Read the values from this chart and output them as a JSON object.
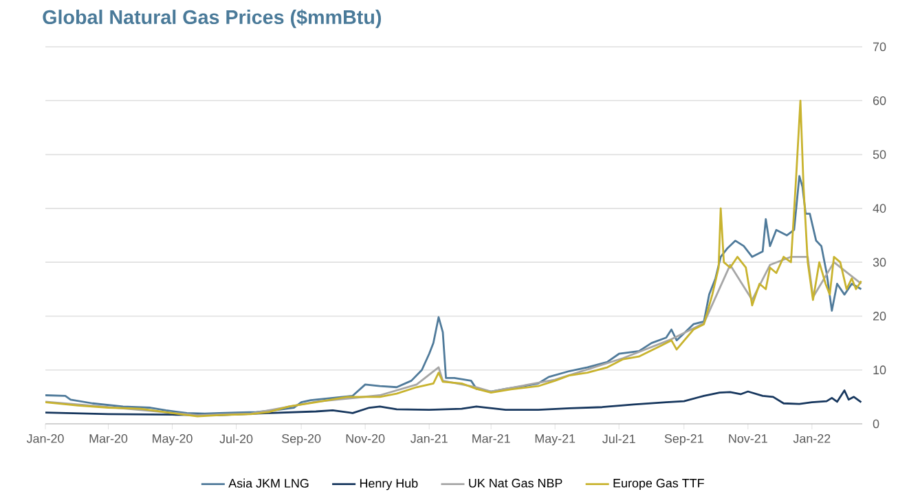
{
  "chart_data": {
    "type": "line",
    "title": "Global Natural Gas Prices ($mmBtu)",
    "xlim": [
      "2020-01-01",
      "2022-02-18"
    ],
    "xticks": [
      {
        "value": "2020-01-01",
        "label": "Jan-20"
      },
      {
        "value": "2020-03-01",
        "label": "Mar-20"
      },
      {
        "value": "2020-05-01",
        "label": "May-20"
      },
      {
        "value": "2020-07-01",
        "label": "Jul-20"
      },
      {
        "value": "2020-09-01",
        "label": "Sep-20"
      },
      {
        "value": "2020-11-01",
        "label": "Nov-20"
      },
      {
        "value": "2021-01-01",
        "label": "Jan-21"
      },
      {
        "value": "2021-03-01",
        "label": "Mar-21"
      },
      {
        "value": "2021-05-01",
        "label": "May-21"
      },
      {
        "value": "2021-07-01",
        "label": "Jul-21"
      },
      {
        "value": "2021-09-01",
        "label": "Sep-21"
      },
      {
        "value": "2021-11-01",
        "label": "Nov-21"
      },
      {
        "value": "2022-01-01",
        "label": "Jan-22"
      }
    ],
    "ylim": [
      0,
      70
    ],
    "yticks": [
      0,
      10,
      20,
      30,
      40,
      50,
      60,
      70
    ],
    "grid": "y",
    "legend": "bottom",
    "marker": "none",
    "line_style": "solid",
    "series": [
      {
        "name": "Asia JKM LNG",
        "color": "#4f7a9a",
        "x": [
          "2020-01-01",
          "2020-01-20",
          "2020-01-25",
          "2020-02-15",
          "2020-03-15",
          "2020-04-10",
          "2020-04-25",
          "2020-05-15",
          "2020-06-01",
          "2020-06-15",
          "2020-07-01",
          "2020-07-20",
          "2020-08-10",
          "2020-08-25",
          "2020-09-01",
          "2020-09-10",
          "2020-10-01",
          "2020-10-20",
          "2020-11-01",
          "2020-11-15",
          "2020-12-01",
          "2020-12-15",
          "2020-12-25",
          "2021-01-01",
          "2021-01-05",
          "2021-01-10",
          "2021-01-14",
          "2021-01-17",
          "2021-01-25",
          "2021-02-10",
          "2021-02-15",
          "2021-03-01",
          "2021-03-15",
          "2021-04-01",
          "2021-04-15",
          "2021-04-25",
          "2021-05-15",
          "2021-06-01",
          "2021-06-20",
          "2021-07-01",
          "2021-07-20",
          "2021-08-01",
          "2021-08-15",
          "2021-08-20",
          "2021-08-25",
          "2021-09-10",
          "2021-09-20",
          "2021-09-25",
          "2021-10-01",
          "2021-10-06",
          "2021-10-12",
          "2021-10-20",
          "2021-10-28",
          "2021-11-05",
          "2021-11-15",
          "2021-11-18",
          "2021-11-22",
          "2021-11-28",
          "2021-12-08",
          "2021-12-15",
          "2021-12-20",
          "2021-12-23",
          "2021-12-26",
          "2021-12-30",
          "2022-01-05",
          "2022-01-10",
          "2022-01-15",
          "2022-01-20",
          "2022-01-25",
          "2022-02-01",
          "2022-02-08",
          "2022-02-17"
        ],
        "values": [
          5.3,
          5.2,
          4.5,
          3.8,
          3.2,
          3.0,
          2.5,
          2.0,
          1.9,
          2.0,
          2.1,
          2.2,
          2.6,
          3.0,
          4.0,
          4.4,
          4.8,
          5.2,
          7.3,
          7.0,
          6.8,
          8.0,
          10.0,
          13,
          15,
          19.8,
          17,
          8.5,
          8.5,
          8.0,
          6.5,
          6.0,
          6.5,
          7.0,
          7.5,
          8.7,
          9.8,
          10.5,
          11.5,
          13,
          13.5,
          15,
          16,
          17.5,
          15.5,
          18.5,
          19,
          24,
          27,
          31,
          32.5,
          34,
          33,
          31,
          32,
          38,
          33,
          36,
          35,
          36,
          46,
          44,
          39,
          39,
          34,
          33,
          28,
          21,
          26,
          24,
          26,
          25
        ]
      },
      {
        "name": "Henry Hub",
        "color": "#17375e",
        "x": [
          "2020-01-01",
          "2020-03-01",
          "2020-05-01",
          "2020-06-15",
          "2020-08-01",
          "2020-09-15",
          "2020-10-01",
          "2020-10-20",
          "2020-11-05",
          "2020-11-15",
          "2020-12-01",
          "2021-01-01",
          "2021-02-01",
          "2021-02-15",
          "2021-03-15",
          "2021-04-15",
          "2021-05-15",
          "2021-06-15",
          "2021-07-15",
          "2021-08-15",
          "2021-09-01",
          "2021-09-20",
          "2021-10-05",
          "2021-10-15",
          "2021-10-25",
          "2021-11-01",
          "2021-11-15",
          "2021-11-25",
          "2021-12-05",
          "2021-12-20",
          "2022-01-01",
          "2022-01-15",
          "2022-01-20",
          "2022-01-25",
          "2022-02-01",
          "2022-02-05",
          "2022-02-10",
          "2022-02-17"
        ],
        "values": [
          2.1,
          1.8,
          1.7,
          1.6,
          2.0,
          2.3,
          2.5,
          2.0,
          3.0,
          3.2,
          2.7,
          2.6,
          2.8,
          3.2,
          2.6,
          2.6,
          2.9,
          3.1,
          3.6,
          4.0,
          4.2,
          5.2,
          5.8,
          5.9,
          5.5,
          6.0,
          5.2,
          5.0,
          3.8,
          3.7,
          4.0,
          4.2,
          4.8,
          4.1,
          6.2,
          4.5,
          5.0,
          4.0
        ]
      },
      {
        "name": "UK Nat Gas NBP",
        "color": "#a6a6a6",
        "x": [
          "2020-01-01",
          "2020-03-01",
          "2020-05-25",
          "2020-07-15",
          "2020-09-15",
          "2020-11-15",
          "2020-12-20",
          "2021-01-10",
          "2021-01-14",
          "2021-02-15",
          "2021-03-01",
          "2021-05-01",
          "2021-07-05",
          "2021-08-20",
          "2021-09-20",
          "2021-10-06",
          "2021-10-15",
          "2021-11-05",
          "2021-11-22",
          "2021-12-12",
          "2021-12-21",
          "2021-12-28",
          "2022-01-02",
          "2022-01-22",
          "2022-02-17"
        ],
        "values": [
          4.1,
          3.1,
          1.6,
          1.9,
          4.1,
          5.3,
          7.3,
          10.5,
          8.0,
          6.8,
          6.0,
          8.2,
          12.2,
          15.7,
          18.7,
          null,
          29.5,
          23,
          29.5,
          31,
          null,
          31,
          23.5,
          30,
          26
        ]
      },
      {
        "name": "Europe Gas TTF",
        "color": "#c8b32e",
        "x": [
          "2020-01-01",
          "2020-02-01",
          "2020-03-01",
          "2020-04-01",
          "2020-05-01",
          "2020-05-25",
          "2020-06-15",
          "2020-07-15",
          "2020-08-01",
          "2020-08-20",
          "2020-09-15",
          "2020-10-15",
          "2020-11-15",
          "2020-12-01",
          "2020-12-20",
          "2021-01-05",
          "2021-01-10",
          "2021-01-14",
          "2021-02-01",
          "2021-02-15",
          "2021-03-01",
          "2021-03-20",
          "2021-04-15",
          "2021-05-01",
          "2021-05-15",
          "2021-06-01",
          "2021-06-20",
          "2021-07-05",
          "2021-07-20",
          "2021-08-10",
          "2021-08-20",
          "2021-08-25",
          "2021-09-10",
          "2021-09-20",
          "2021-09-28",
          "2021-10-04",
          "2021-10-06",
          "2021-10-09",
          "2021-10-15",
          "2021-10-22",
          "2021-10-30",
          "2021-11-05",
          "2021-11-12",
          "2021-11-18",
          "2021-11-22",
          "2021-11-28",
          "2021-12-05",
          "2021-12-12",
          "2021-12-17",
          "2021-12-21",
          "2021-12-24",
          "2021-12-28",
          "2022-01-02",
          "2022-01-08",
          "2022-01-14",
          "2022-01-18",
          "2022-01-22",
          "2022-01-28",
          "2022-02-03",
          "2022-02-08",
          "2022-02-12",
          "2022-02-17"
        ],
        "values": [
          4.0,
          3.4,
          3.0,
          2.8,
          2.0,
          1.4,
          1.6,
          1.8,
          2.2,
          3.2,
          4.0,
          5.0,
          5.0,
          5.6,
          6.8,
          7.5,
          9.5,
          7.8,
          7.5,
          6.5,
          5.8,
          6.4,
          7.0,
          8.0,
          9.0,
          9.5,
          10.5,
          12.0,
          12.5,
          14.5,
          15.5,
          13.8,
          17.5,
          18.5,
          24,
          29,
          40,
          30,
          29,
          31,
          29,
          22,
          26,
          25,
          29,
          28,
          31,
          30,
          46,
          60,
          44,
          30,
          23,
          30,
          26,
          24,
          31,
          30,
          25,
          27,
          25,
          26.5
        ]
      }
    ]
  }
}
